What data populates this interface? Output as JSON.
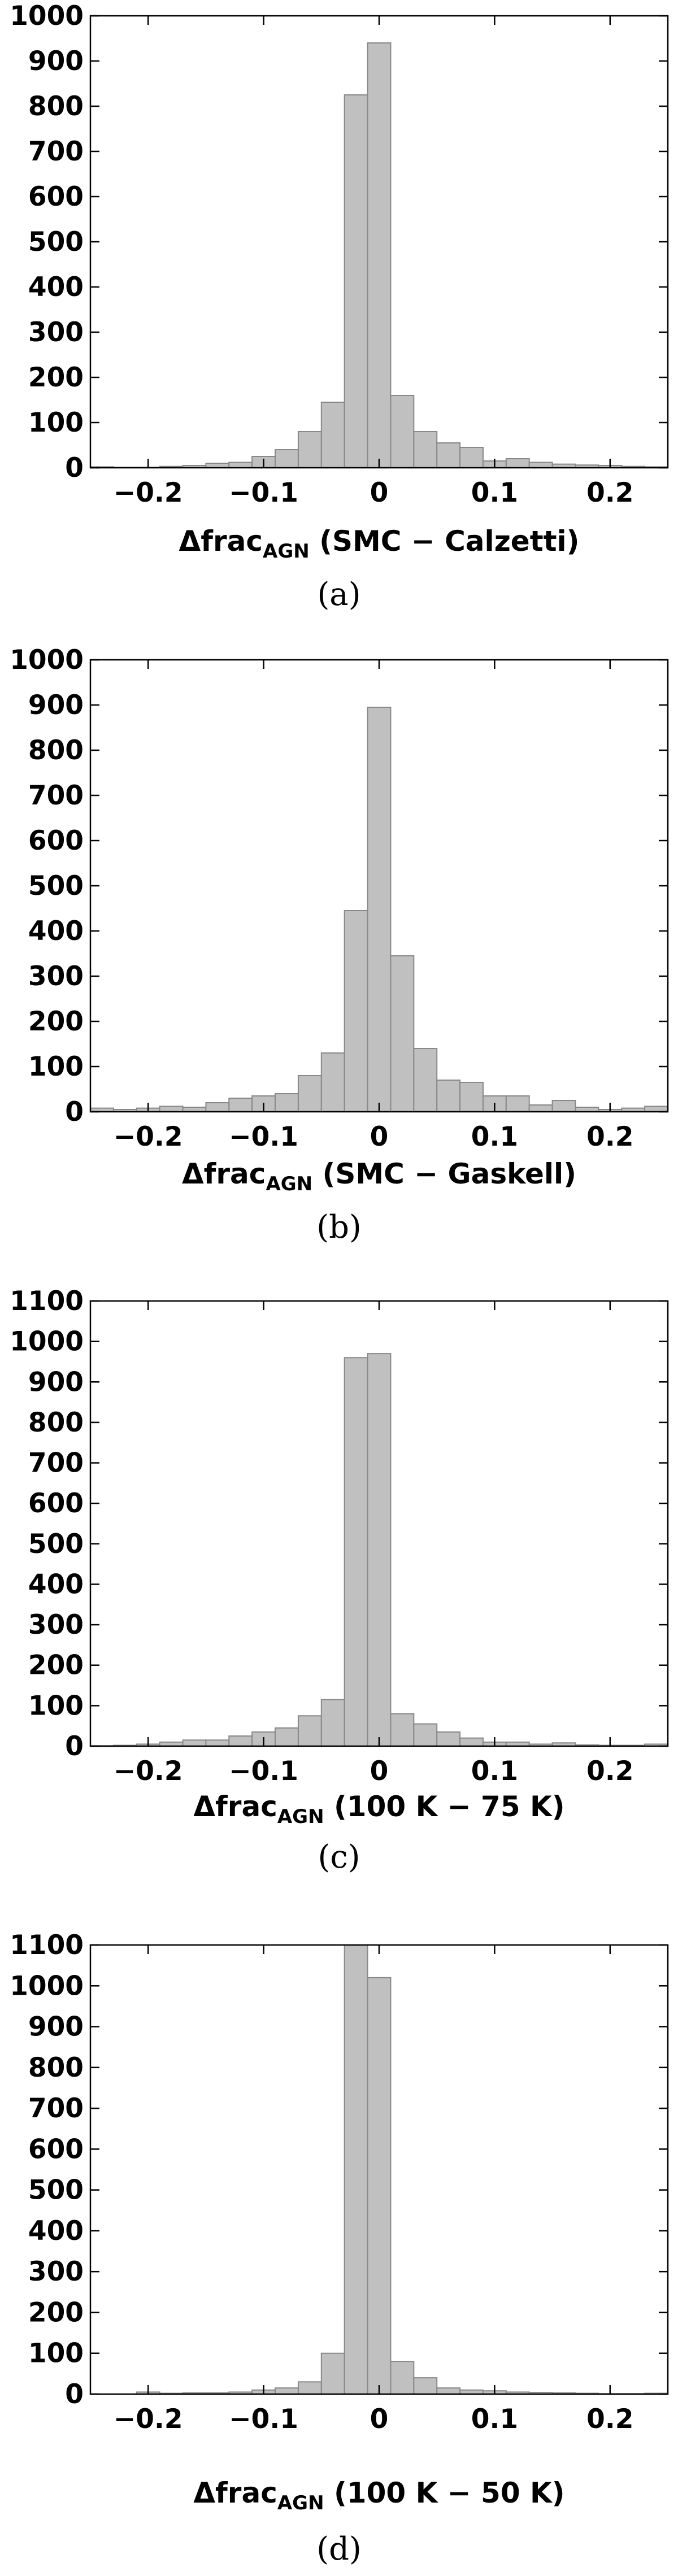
{
  "chart_data": [
    {
      "type": "bar",
      "caption": "(a)",
      "xlabel": {
        "main": "Δfrac",
        "sub": "AGN",
        "rest": " (SMC − Calzetti)"
      },
      "xlim": [
        -0.25,
        0.25
      ],
      "ylim": [
        0,
        1000
      ],
      "bin_width": 0.02,
      "xticks": [
        -0.2,
        -0.1,
        0,
        0.1,
        0.2
      ],
      "xtick_labels": [
        "−0.2",
        "−0.1",
        "0",
        "0.1",
        "0.2"
      ],
      "yticks": [
        0,
        100,
        200,
        300,
        400,
        500,
        600,
        700,
        800,
        900,
        1000
      ],
      "bin_left_edges": [
        -0.25,
        -0.23,
        -0.21,
        -0.19,
        -0.17,
        -0.15,
        -0.13,
        -0.11,
        -0.09,
        -0.07,
        -0.05,
        -0.03,
        -0.01,
        0.01,
        0.03,
        0.05,
        0.07,
        0.09,
        0.11,
        0.13,
        0.15,
        0.17,
        0.19,
        0.21,
        0.23
      ],
      "values": [
        2,
        1,
        1,
        3,
        5,
        10,
        12,
        25,
        40,
        80,
        145,
        825,
        940,
        160,
        80,
        55,
        45,
        15,
        20,
        12,
        8,
        6,
        5,
        3,
        2
      ]
    },
    {
      "type": "bar",
      "caption": "(b)",
      "xlabel": {
        "main": "Δfrac",
        "sub": "AGN",
        "rest": " (SMC − Gaskell)"
      },
      "xlim": [
        -0.25,
        0.25
      ],
      "ylim": [
        0,
        1000
      ],
      "bin_width": 0.02,
      "xticks": [
        -0.2,
        -0.1,
        0,
        0.1,
        0.2
      ],
      "xtick_labels": [
        "−0.2",
        "−0.1",
        "0",
        "0.1",
        "0.2"
      ],
      "yticks": [
        0,
        100,
        200,
        300,
        400,
        500,
        600,
        700,
        800,
        900,
        1000
      ],
      "bin_left_edges": [
        -0.25,
        -0.23,
        -0.21,
        -0.19,
        -0.17,
        -0.15,
        -0.13,
        -0.11,
        -0.09,
        -0.07,
        -0.05,
        -0.03,
        -0.01,
        0.01,
        0.03,
        0.05,
        0.07,
        0.09,
        0.11,
        0.13,
        0.15,
        0.17,
        0.19,
        0.21,
        0.23
      ],
      "values": [
        8,
        5,
        8,
        12,
        10,
        20,
        30,
        35,
        40,
        80,
        130,
        445,
        895,
        345,
        140,
        70,
        65,
        35,
        35,
        15,
        25,
        10,
        5,
        8,
        12
      ]
    },
    {
      "type": "bar",
      "caption": "(c)",
      "xlabel": {
        "main": "Δfrac",
        "sub": "AGN",
        "rest": " (100 K − 75 K)"
      },
      "xlim": [
        -0.25,
        0.25
      ],
      "ylim": [
        0,
        1100
      ],
      "bin_width": 0.02,
      "xticks": [
        -0.2,
        -0.1,
        0,
        0.1,
        0.2
      ],
      "xtick_labels": [
        "−0.2",
        "−0.1",
        "0",
        "0.1",
        "0.2"
      ],
      "yticks": [
        0,
        100,
        200,
        300,
        400,
        500,
        600,
        700,
        800,
        900,
        1000,
        1100
      ],
      "bin_left_edges": [
        -0.25,
        -0.23,
        -0.21,
        -0.19,
        -0.17,
        -0.15,
        -0.13,
        -0.11,
        -0.09,
        -0.07,
        -0.05,
        -0.03,
        -0.01,
        0.01,
        0.03,
        0.05,
        0.07,
        0.09,
        0.11,
        0.13,
        0.15,
        0.17,
        0.19,
        0.21,
        0.23
      ],
      "values": [
        1,
        2,
        5,
        10,
        15,
        15,
        25,
        35,
        45,
        75,
        115,
        960,
        970,
        80,
        55,
        35,
        20,
        10,
        10,
        5,
        8,
        3,
        2,
        2,
        5
      ]
    },
    {
      "type": "bar",
      "caption": "(d)",
      "xlabel": {
        "main": "Δfrac",
        "sub": "AGN",
        "rest": " (100 K − 50 K)"
      },
      "xlim": [
        -0.25,
        0.25
      ],
      "ylim": [
        0,
        1100
      ],
      "bin_width": 0.02,
      "xticks": [
        -0.2,
        -0.1,
        0,
        0.1,
        0.2
      ],
      "xtick_labels": [
        "−0.2",
        "−0.1",
        "0",
        "0.1",
        "0.2"
      ],
      "yticks": [
        0,
        100,
        200,
        300,
        400,
        500,
        600,
        700,
        800,
        900,
        1000,
        1100
      ],
      "bin_left_edges": [
        -0.25,
        -0.23,
        -0.21,
        -0.19,
        -0.17,
        -0.15,
        -0.13,
        -0.11,
        -0.09,
        -0.07,
        -0.05,
        -0.03,
        -0.01,
        0.01,
        0.03,
        0.05,
        0.07,
        0.09,
        0.11,
        0.13,
        0.15,
        0.17,
        0.19,
        0.21,
        0.23
      ],
      "values": [
        0,
        0,
        5,
        2,
        3,
        3,
        5,
        10,
        15,
        30,
        100,
        1100,
        1020,
        80,
        40,
        15,
        10,
        8,
        5,
        4,
        3,
        2,
        1,
        1,
        2
      ]
    }
  ],
  "colors": {
    "bar_fill": "#c0c0c0",
    "bar_stroke": "#888888",
    "axis": "#000000"
  }
}
